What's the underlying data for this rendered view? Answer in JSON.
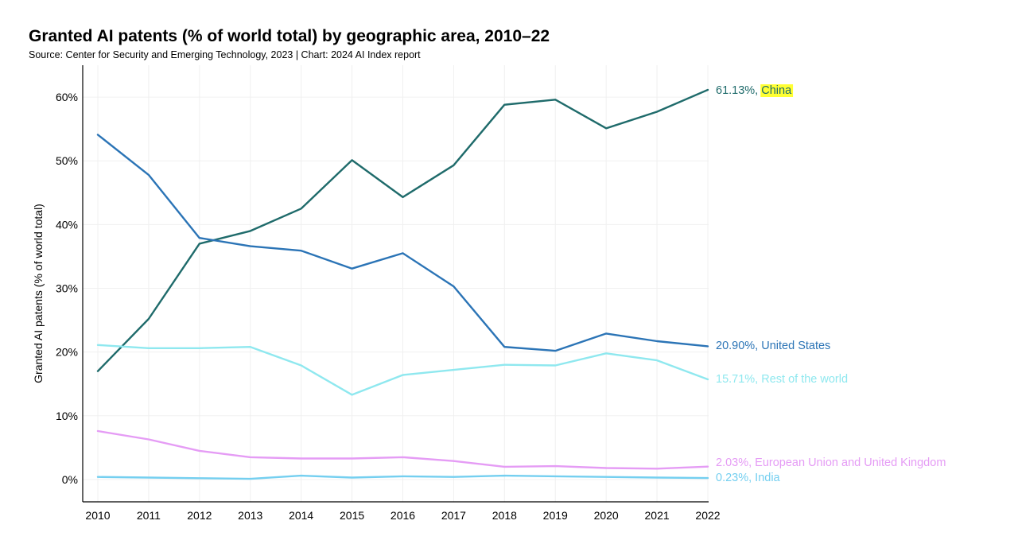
{
  "chart_data": {
    "type": "line",
    "title": "Granted AI patents (% of world total) by geographic area, 2010–22",
    "subtitle": "Source: Center for Security and Emerging Technology, 2023 | Chart: 2024 AI Index report",
    "xlabel": "",
    "ylabel": "Granted AI patents (% of world total)",
    "x": [
      "2010",
      "2011",
      "2012",
      "2013",
      "2014",
      "2015",
      "2016",
      "2017",
      "2018",
      "2019",
      "2020",
      "2021",
      "2022"
    ],
    "ylim": [
      -3.5,
      65
    ],
    "yticks": [
      0,
      10,
      20,
      30,
      40,
      50,
      60
    ],
    "ytick_labels": [
      "0%",
      "10%",
      "20%",
      "30%",
      "40%",
      "50%",
      "60%"
    ],
    "grid": true,
    "series": [
      {
        "name": "China",
        "color": "#1f6b6b",
        "label_value": "61.13%",
        "label_highlight": "#ffff33",
        "values": [
          17.0,
          25.2,
          37.0,
          39.0,
          42.5,
          50.1,
          44.3,
          49.3,
          58.8,
          59.6,
          55.1,
          57.7,
          61.13
        ]
      },
      {
        "name": "United States",
        "color": "#2b74b6",
        "label_value": "20.90%",
        "values": [
          54.1,
          47.8,
          37.9,
          36.6,
          35.9,
          33.1,
          35.5,
          30.3,
          20.8,
          20.2,
          22.9,
          21.7,
          20.9
        ]
      },
      {
        "name": "Rest of the world",
        "color": "#8fe8ef",
        "label_value": "15.71%",
        "values": [
          21.1,
          20.6,
          20.6,
          20.8,
          17.9,
          13.3,
          16.4,
          17.2,
          18.0,
          17.9,
          19.8,
          18.7,
          15.71
        ]
      },
      {
        "name": "European Union and United Kingdom",
        "color": "#e59cf5",
        "label_value": "2.03%",
        "values": [
          7.6,
          6.3,
          4.5,
          3.5,
          3.3,
          3.3,
          3.5,
          2.9,
          2.0,
          2.1,
          1.8,
          1.7,
          2.03
        ]
      },
      {
        "name": "India",
        "color": "#74cff0",
        "label_value": "0.23%",
        "values": [
          0.4,
          0.3,
          0.2,
          0.1,
          0.6,
          0.3,
          0.5,
          0.4,
          0.6,
          0.5,
          0.4,
          0.3,
          0.23
        ]
      }
    ]
  }
}
